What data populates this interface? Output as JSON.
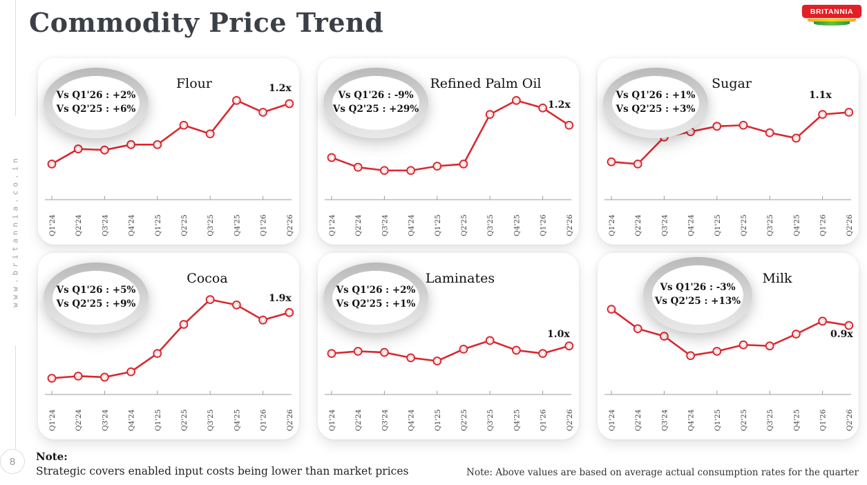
{
  "page": {
    "title": "Commodity Price Trend",
    "logo_text": "BRITANNIA",
    "sidebar_text": "www.britannia.co.in",
    "page_number": "8",
    "note_label": "Note:",
    "note_text": "Strategic covers enabled input costs being lower than market prices",
    "note_right": "Note: Above values are based on average actual consumption rates for the quarter"
  },
  "colors": {
    "line": "#d8292f",
    "logo_red": "#e31e24",
    "title_text": "#3b3f46",
    "axis": "#9b9b9b"
  },
  "chart_data": [
    {
      "type": "line",
      "title": "Flour",
      "badge_line1": "Vs Q1'26 : +2%",
      "badge_line2": "Vs Q2'25 : +6%",
      "multiplier": "1.2x",
      "categories": [
        "Q1'24",
        "Q2'24",
        "Q3'24",
        "Q4'24",
        "Q1'25",
        "Q2'25",
        "Q3'25",
        "Q4'25",
        "Q1'26",
        "Q2'26"
      ],
      "values": [
        35,
        49,
        48,
        53,
        53,
        71,
        63,
        94,
        83,
        91
      ],
      "ylabel": "",
      "xlabel": "",
      "grid": false,
      "legend": "none"
    },
    {
      "type": "line",
      "title": "Refined Palm Oil",
      "badge_line1": "Vs Q1'26 : -9%",
      "badge_line2": "Vs Q2'25 : +29%",
      "multiplier": "1.2x",
      "categories": [
        "Q1'24",
        "Q2'24",
        "Q3'24",
        "Q4'24",
        "Q1'25",
        "Q2'25",
        "Q3'25",
        "Q4'25",
        "Q1'26",
        "Q2'26"
      ],
      "values": [
        41,
        32,
        29,
        29,
        33,
        35,
        81,
        94,
        87,
        71
      ],
      "ylabel": "",
      "xlabel": "",
      "grid": false,
      "legend": "none"
    },
    {
      "type": "line",
      "title": "Sugar",
      "badge_line1": "Vs Q1'26 : +1%",
      "badge_line2": "Vs Q2'25 : +3%",
      "multiplier": "1.1x",
      "categories": [
        "Q1'24",
        "Q2'24",
        "Q3'24",
        "Q4'24",
        "Q1'25",
        "Q2'25",
        "Q3'25",
        "Q4'25",
        "Q1'26",
        "Q2'26"
      ],
      "values": [
        37,
        35,
        60,
        65,
        70,
        71,
        64,
        59,
        81,
        83
      ],
      "ylabel": "",
      "xlabel": "",
      "grid": false,
      "legend": "none"
    },
    {
      "type": "line",
      "title": "Cocoa",
      "badge_line1": "Vs Q1'26 : +5%",
      "badge_line2": "Vs Q2'25 : +9%",
      "multiplier": "1.9x",
      "categories": [
        "Q1'24",
        "Q2'24",
        "Q3'24",
        "Q4'24",
        "Q1'25",
        "Q2'25",
        "Q3'25",
        "Q4'25",
        "Q1'26",
        "Q2'26"
      ],
      "values": [
        17,
        19,
        18,
        23,
        40,
        67,
        90,
        85,
        71,
        78
      ],
      "ylabel": "",
      "xlabel": "",
      "grid": false,
      "legend": "none"
    },
    {
      "type": "line",
      "title": "Laminates",
      "badge_line1": "Vs Q1'26 : +2%",
      "badge_line2": "Vs Q2'25 : +1%",
      "multiplier": "1.0x",
      "categories": [
        "Q1'24",
        "Q2'24",
        "Q3'24",
        "Q4'24",
        "Q1'25",
        "Q2'25",
        "Q3'25",
        "Q4'25",
        "Q1'26",
        "Q2'26"
      ],
      "values": [
        40,
        42,
        41,
        36,
        33,
        44,
        52,
        43,
        40,
        47
      ],
      "ylabel": "",
      "xlabel": "",
      "grid": false,
      "legend": "none"
    },
    {
      "type": "line",
      "title": "Milk",
      "badge_line1": "Vs Q1'26 : -3%",
      "badge_line2": "Vs Q2'25 : +13%",
      "multiplier": "0.9x",
      "categories": [
        "Q1'24",
        "Q2'24",
        "Q3'24",
        "Q4'24",
        "Q1'25",
        "Q2'25",
        "Q3'25",
        "Q4'25",
        "Q1'26",
        "Q2'26"
      ],
      "values": [
        81,
        63,
        56,
        38,
        42,
        48,
        47,
        58,
        70,
        66
      ],
      "ylabel": "",
      "xlabel": "",
      "grid": false,
      "legend": "none"
    }
  ]
}
